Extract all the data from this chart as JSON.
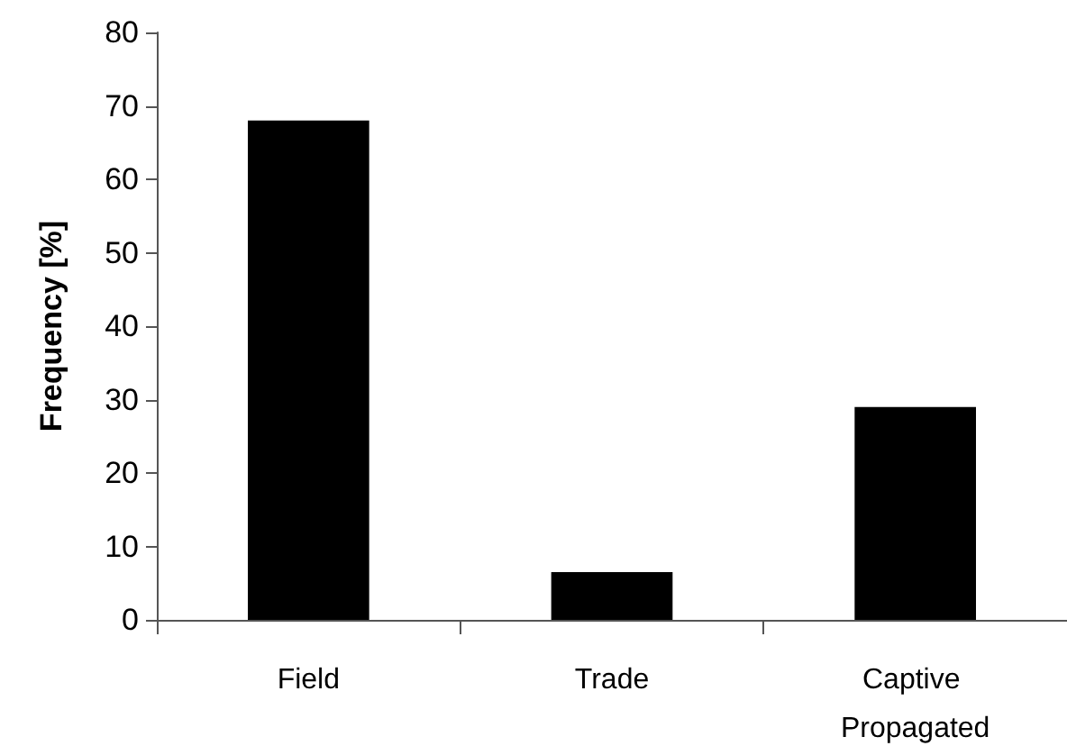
{
  "chart_data": {
    "type": "bar",
    "ylabel": "Frequency [%]",
    "categories": [
      "Field",
      "Trade",
      "Captive Propagated"
    ],
    "values": [
      68,
      6.5,
      29
    ],
    "color": "#000000",
    "ylim": [
      0,
      80
    ],
    "yticks": [
      0,
      10,
      20,
      30,
      40,
      50,
      60,
      70,
      80
    ],
    "grid": false
  }
}
